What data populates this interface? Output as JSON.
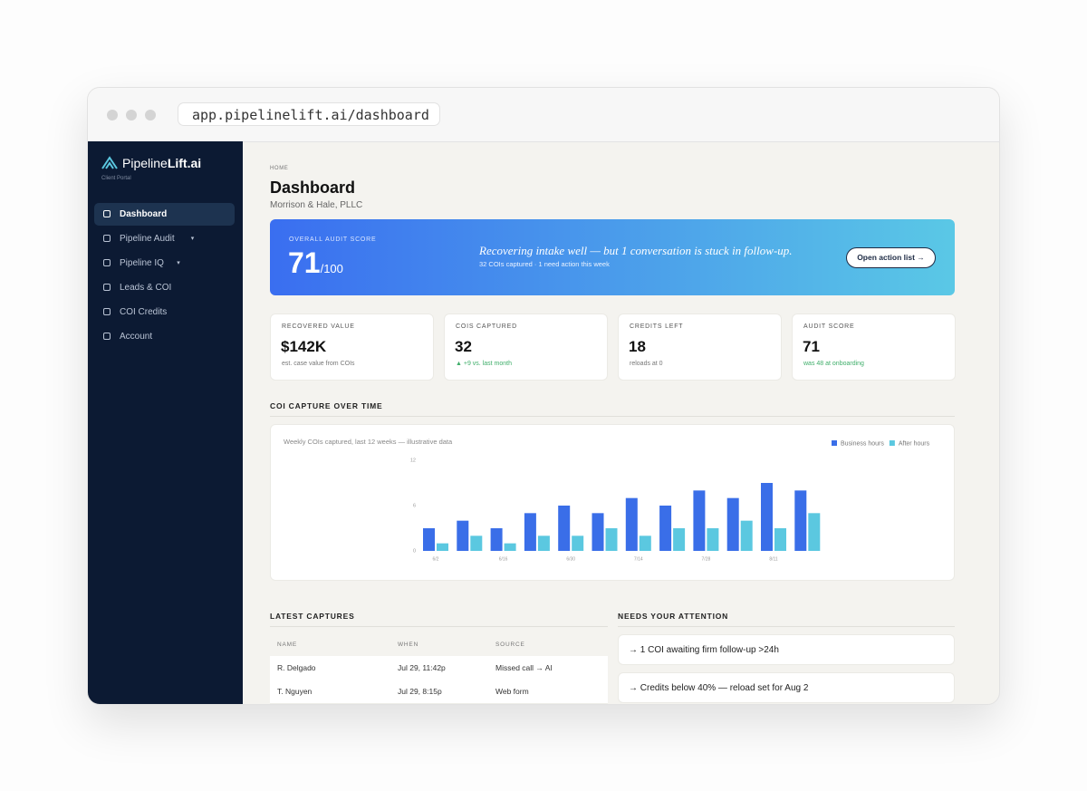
{
  "browser": {
    "url": "app.pipelinelift.ai/dashboard"
  },
  "sidebar": {
    "brand": {
      "prefix": "Pipeline",
      "suffix": "Lift.ai"
    },
    "portal": "Client Portal",
    "nav": [
      {
        "label": "Dashboard",
        "active": true,
        "dropdown": false
      },
      {
        "label": "Pipeline Audit",
        "active": false,
        "dropdown": true
      },
      {
        "label": "Pipeline IQ",
        "active": false,
        "dropdown": true
      },
      {
        "label": "Leads & COI",
        "active": false,
        "dropdown": false
      },
      {
        "label": "COI Credits",
        "active": false,
        "dropdown": false
      },
      {
        "label": "Account",
        "active": false,
        "dropdown": false
      }
    ]
  },
  "header": {
    "breadcrumb": "HOME",
    "title": "Dashboard",
    "subtitle": "Morrison & Hale, PLLC"
  },
  "banner": {
    "label": "OVERALL AUDIT SCORE",
    "score": "71",
    "out_of": "/100",
    "message": "Recovering intake well — but 1 conversation is stuck in follow-up.",
    "detail": "32 COIs captured · 1 need action this week",
    "button": "Open action list →"
  },
  "stats": [
    {
      "label": "RECOVERED VALUE",
      "value": "$142K",
      "note": "est. case value from COIs",
      "positive": false
    },
    {
      "label": "COIS CAPTURED",
      "value": "32",
      "note": "▲ +9 vs. last month",
      "positive": true
    },
    {
      "label": "CREDITS LEFT",
      "value": "18",
      "note": "reloads at 0",
      "positive": false
    },
    {
      "label": "AUDIT SCORE",
      "value": "71",
      "note": "was 48 at onboarding",
      "positive": true
    }
  ],
  "section_title": "COI CAPTURE OVER TIME",
  "chart_data": {
    "type": "bar",
    "subtitle": "Weekly COIs captured, last 12 weeks — illustrative data",
    "categories": [
      "6/2",
      null,
      "6/16",
      null,
      "6/30",
      null,
      "7/14",
      null,
      "7/28",
      null,
      "8/11",
      null
    ],
    "series": [
      {
        "name": "Business hours",
        "color": "#3a6ee8",
        "values": [
          3,
          4,
          3,
          5,
          6,
          5,
          7,
          6,
          8,
          7,
          9,
          8
        ]
      },
      {
        "name": "After hours",
        "color": "#5bc8e0",
        "values": [
          1,
          2,
          1,
          2,
          2,
          3,
          2,
          3,
          3,
          4,
          3,
          5
        ]
      }
    ],
    "ylim": [
      0,
      12
    ],
    "yticks": [
      0,
      6,
      12
    ],
    "grid": false,
    "legend": "top-right"
  },
  "captures": {
    "title": "LATEST CAPTURES",
    "columns": [
      "NAME",
      "WHEN",
      "SOURCE"
    ],
    "rows": [
      [
        "R. Delgado",
        "Jul 29, 11:42p",
        "Missed call → AI"
      ],
      [
        "T. Nguyen",
        "Jul 29, 8:15p",
        "Web form"
      ]
    ]
  },
  "attention": {
    "title": "NEEDS YOUR ATTENTION",
    "items": [
      "→ 1 COI awaiting firm follow-up >24h",
      "→ Credits below 40% — reload set for Aug 2"
    ]
  }
}
